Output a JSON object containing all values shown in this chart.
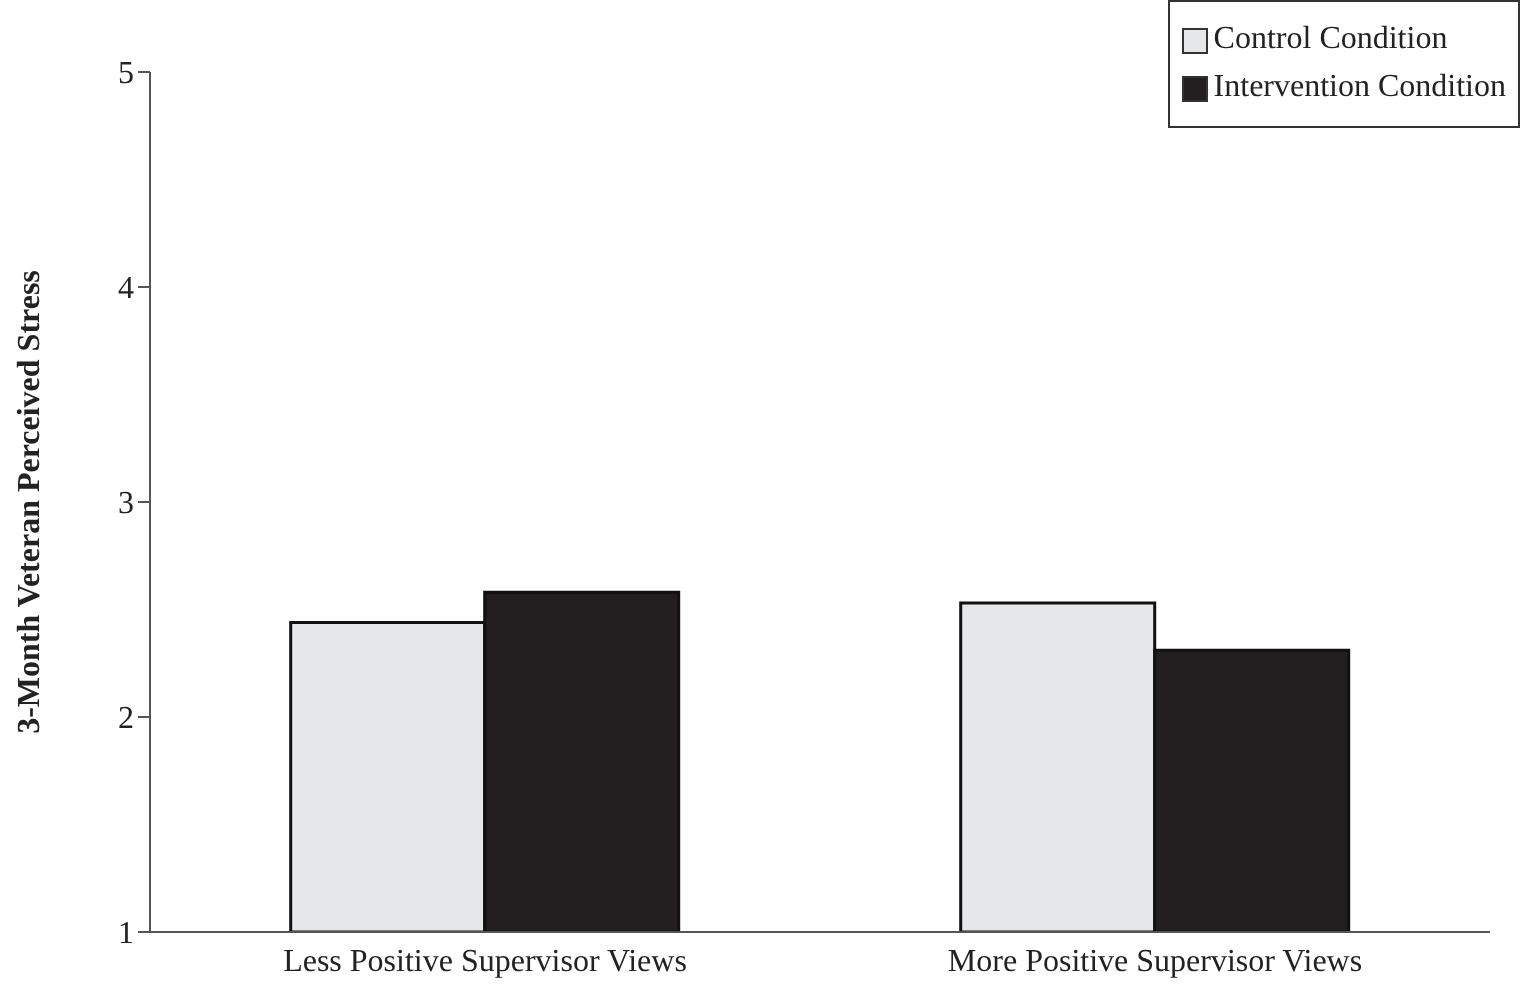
{
  "chart_data": {
    "type": "bar",
    "ylabel": "3-Month Veteran Perceived Stress",
    "categories": [
      "Less Positive Supervisor Views",
      "More Positive Supervisor Views"
    ],
    "series": [
      {
        "name": "Control Condition",
        "color": "#e6e7e8",
        "values": [
          2.44,
          2.53
        ]
      },
      {
        "name": "Intervention Condition",
        "color": "#231f20",
        "values": [
          2.58,
          2.31
        ]
      }
    ],
    "ylim": [
      1,
      5
    ],
    "yticks": [
      1,
      2,
      3,
      4,
      5
    ],
    "grid": false,
    "legend": "top right"
  }
}
